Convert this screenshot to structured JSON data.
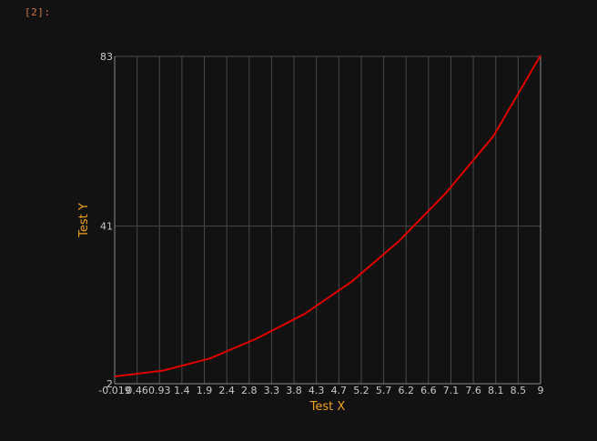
{
  "cell": {
    "prompt": "[2]:"
  },
  "chart_data": {
    "type": "line",
    "title": "",
    "xlabel": "Test X",
    "ylabel": "Test Y",
    "xlim": [
      -0.019,
      9
    ],
    "ylim": [
      2,
      83
    ],
    "x_ticks": [
      "-0.019",
      "0.46",
      "0.93",
      "1.4",
      "1.9",
      "2.4",
      "2.8",
      "3.3",
      "3.8",
      "4.3",
      "4.7",
      "5.2",
      "5.7",
      "6.2",
      "6.6",
      "7.1",
      "7.6",
      "8.1",
      "8.5",
      "9"
    ],
    "y_ticks": [
      "2",
      "41",
      "83"
    ],
    "grid": true,
    "series": [
      {
        "color": "#e00000",
        "x": [
          -0.019,
          1,
          2,
          3,
          4,
          5,
          6,
          7,
          8,
          9
        ],
        "y": [
          2,
          3,
          6,
          11,
          17,
          25,
          35,
          47,
          61,
          81
        ]
      }
    ]
  },
  "colors": {
    "background": "#121212",
    "grid": "#4a4a4a",
    "axis": "#8a8a8a",
    "line": "#e00000",
    "axis_title": "#f0a020",
    "tick_label": "#c8c8c8"
  }
}
